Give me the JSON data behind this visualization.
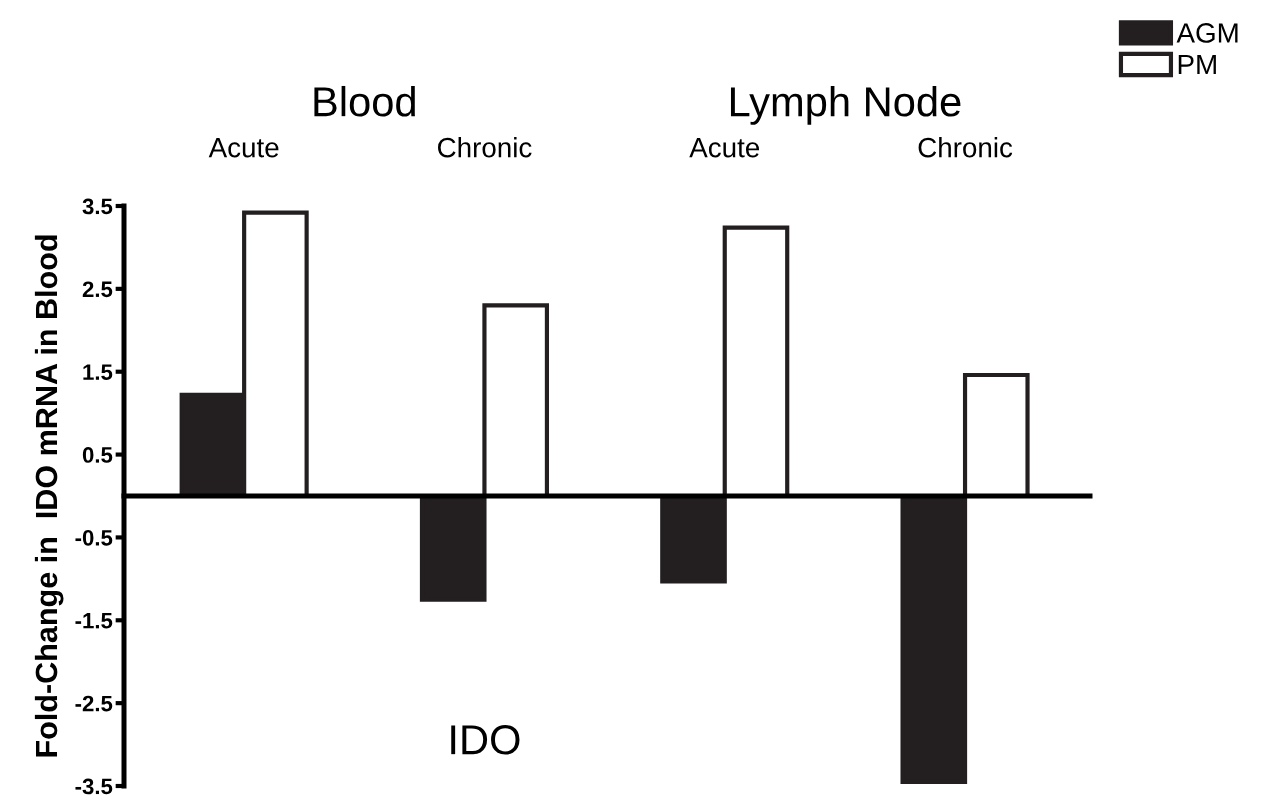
{
  "chart_data": {
    "type": "bar",
    "ylabel": "Fold-Change in  IDO mRNA in Blood",
    "categories": [
      "Acute",
      "Chronic",
      "Acute",
      "Chronic"
    ],
    "series": [
      {
        "name": "AGM",
        "color": "#231f20",
        "values": [
          1.22,
          -1.25,
          -1.03,
          -3.45
        ]
      },
      {
        "name": "PM",
        "color": "#ffffff",
        "values": [
          3.42,
          2.3,
          3.24,
          1.46
        ]
      }
    ],
    "ylim": [
      -3.5,
      3.5
    ],
    "yticks": [
      -3.5,
      -2.5,
      -1.5,
      -0.5,
      0.5,
      1.5,
      2.5,
      3.5
    ],
    "annotations": [
      "Blood",
      "Lymph Node",
      "IDO"
    ],
    "legend": "top right",
    "grid": false
  }
}
